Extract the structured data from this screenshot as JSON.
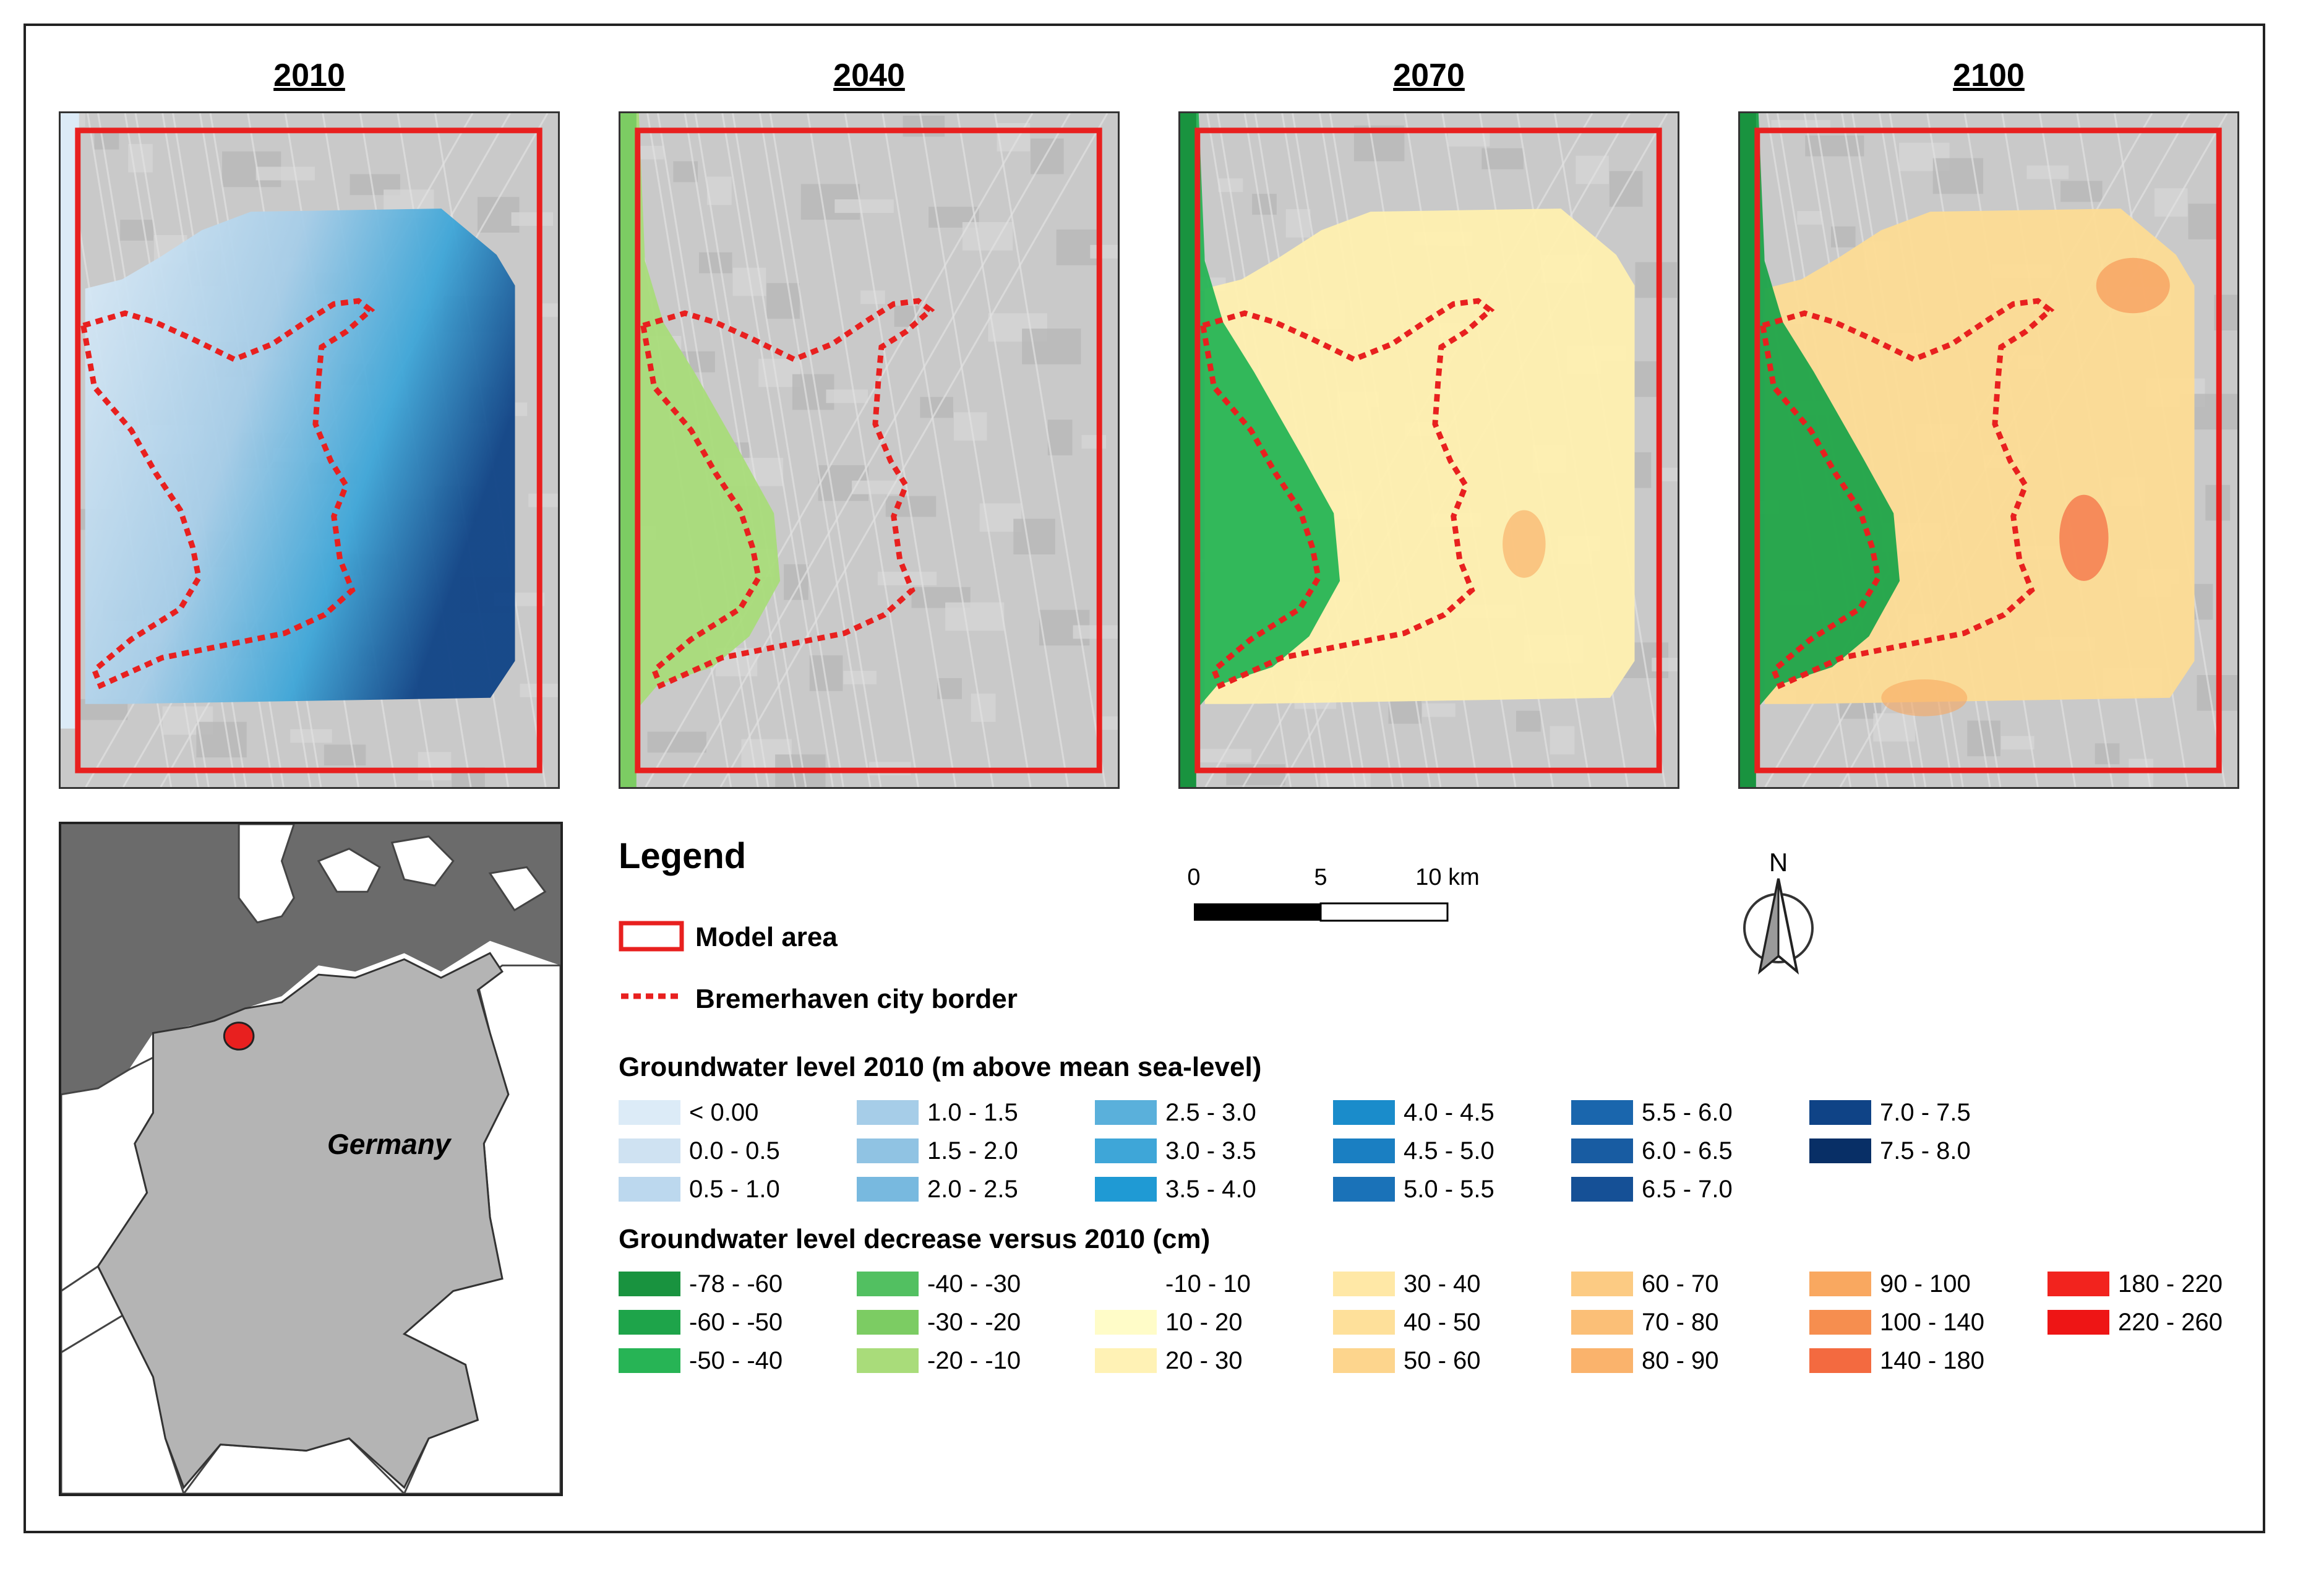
{
  "panels": [
    {
      "year": "2010",
      "scheme": "depth"
    },
    {
      "year": "2040",
      "scheme": "light"
    },
    {
      "year": "2070",
      "scheme": "mid"
    },
    {
      "year": "2100",
      "scheme": "strong"
    }
  ],
  "inset": {
    "label": "Germany"
  },
  "legend": {
    "title": "Legend",
    "model_area": "Model area",
    "city_border": "Bremerhaven city border",
    "gw2010_title": "Groundwater level 2010 (m above mean sea-level)",
    "gw2010_items": [
      {
        "label": "< 0.00",
        "color": "#dcebf7"
      },
      {
        "label": "0.0 - 0.5",
        "color": "#cfe2f2"
      },
      {
        "label": "0.5 - 1.0",
        "color": "#bcd8ee"
      },
      {
        "label": "1.0 - 1.5",
        "color": "#a6cde8"
      },
      {
        "label": "1.5 - 2.0",
        "color": "#90c3e3"
      },
      {
        "label": "2.0 - 2.5",
        "color": "#78b9df"
      },
      {
        "label": "2.5 - 3.0",
        "color": "#5ab0db"
      },
      {
        "label": "3.0 - 3.5",
        "color": "#3ea6d8"
      },
      {
        "label": "3.5 - 4.0",
        "color": "#1f9ad4"
      },
      {
        "label": "4.0 - 4.5",
        "color": "#1a8ccb"
      },
      {
        "label": "4.5 - 5.0",
        "color": "#1a7fc2"
      },
      {
        "label": "5.0 - 5.5",
        "color": "#1a72b8"
      },
      {
        "label": "5.5 - 6.0",
        "color": "#1a66ad"
      },
      {
        "label": "6.0 - 6.5",
        "color": "#185ca2"
      },
      {
        "label": "6.5 - 7.0",
        "color": "#155096"
      },
      {
        "label": "7.0 - 7.5",
        "color": "#0f4386"
      },
      {
        "label": "7.5 - 8.0",
        "color": "#082f66"
      }
    ],
    "decrease_title": "Groundwater level decrease versus 2010 (cm)",
    "decrease_items": [
      {
        "label": "-78 - -60",
        "color": "#19933f"
      },
      {
        "label": "-60 - -50",
        "color": "#1ea44a"
      },
      {
        "label": "-50 - -40",
        "color": "#27b455"
      },
      {
        "label": "-40 - -30",
        "color": "#52c061"
      },
      {
        "label": "-30 - -20",
        "color": "#7ccc63"
      },
      {
        "label": "-20 - -10",
        "color": "#a9dc7a"
      },
      {
        "label": "-10 - 10",
        "color": "#ffffff"
      },
      {
        "label": "10 - 20",
        "color": "#fffcc8"
      },
      {
        "label": "20 - 30",
        "color": "#fff2b5"
      },
      {
        "label": "30 - 40",
        "color": "#ffe8a6"
      },
      {
        "label": "40 - 50",
        "color": "#fee09a"
      },
      {
        "label": "50 - 60",
        "color": "#fdd58d"
      },
      {
        "label": "60 - 70",
        "color": "#fccb83"
      },
      {
        "label": "70 - 80",
        "color": "#fbbf77"
      },
      {
        "label": "80 - 90",
        "color": "#fab36c"
      },
      {
        "label": "90 - 100",
        "color": "#f9a860"
      },
      {
        "label": "100 - 140",
        "color": "#f68e4f"
      },
      {
        "label": "140 - 180",
        "color": "#f36a40"
      },
      {
        "label": "180 - 220",
        "color": "#f2231e"
      },
      {
        "label": "220 - 260",
        "color": "#ee1515"
      }
    ]
  },
  "scale": {
    "ticks": [
      "0",
      "5",
      "10 km"
    ]
  },
  "north": {
    "label": "N"
  },
  "colors": {
    "model_area": "#e8201f",
    "city_border": "#e8201f",
    "basemap": "#c9c9c9"
  }
}
